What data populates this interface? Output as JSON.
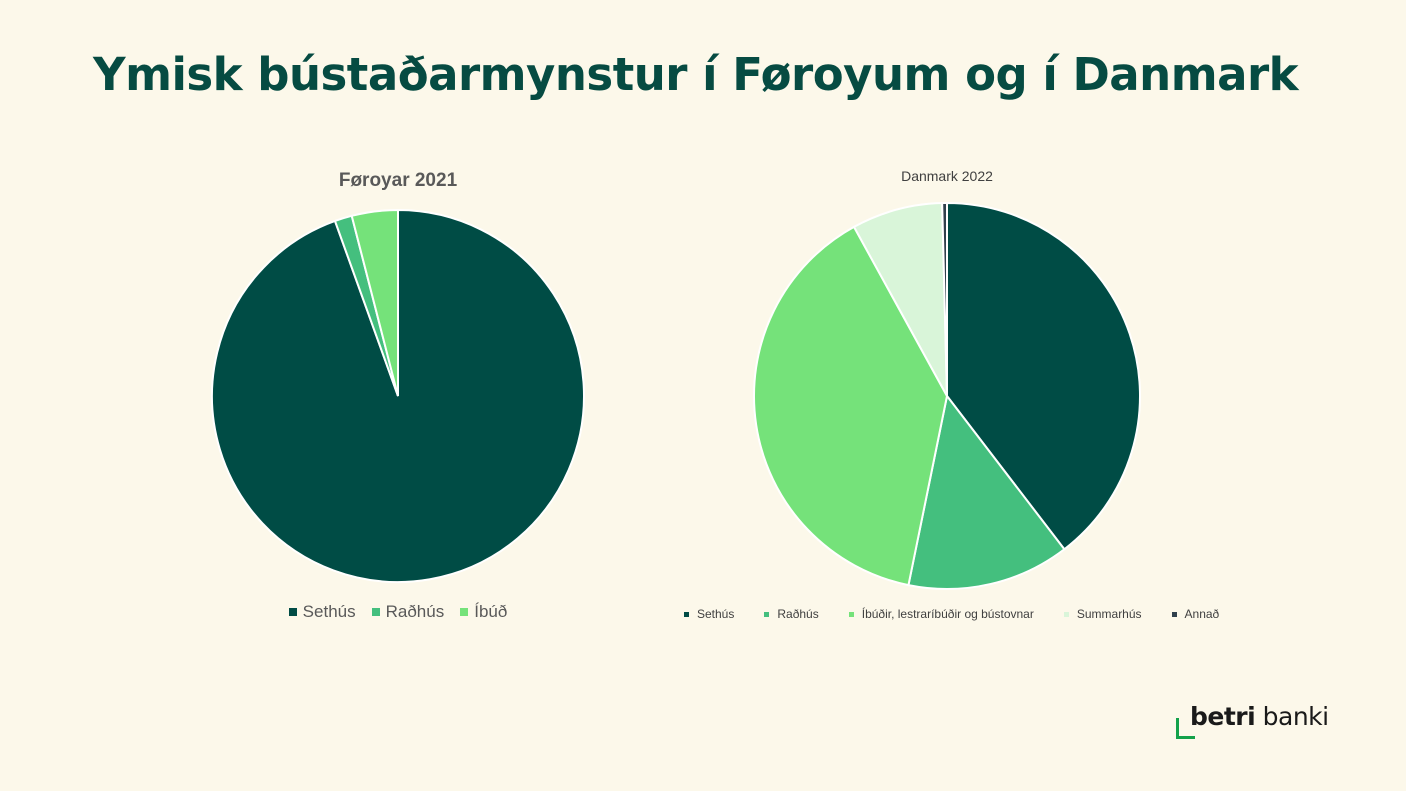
{
  "page": {
    "title": "Ymisk bústaðarmynstur í Føroyum og í Danmark"
  },
  "chart_data": [
    {
      "type": "pie",
      "title": "Føroyar 2021",
      "categories": [
        "Sethús",
        "Raðhús",
        "Íbúð"
      ],
      "values": [
        94.5,
        1.5,
        4.0
      ],
      "colors": [
        "#004c45",
        "#44bf7e",
        "#75e27a"
      ],
      "legend": "bottom"
    },
    {
      "type": "pie",
      "title": "Danmark 2022",
      "categories": [
        "Sethús",
        "Raðhús",
        "Íbúðir, lestraríbúðir og bústovnar",
        "Summarhús",
        "Annað"
      ],
      "values": [
        39.6,
        13.6,
        38.8,
        7.6,
        0.4
      ],
      "colors": [
        "#004c45",
        "#44bf7e",
        "#75e27a",
        "#d9f5d9",
        "#30404c"
      ],
      "legend": "bottom"
    }
  ],
  "logo": {
    "part1": "betri",
    "part2": " banki",
    "color": "#13a14a"
  }
}
